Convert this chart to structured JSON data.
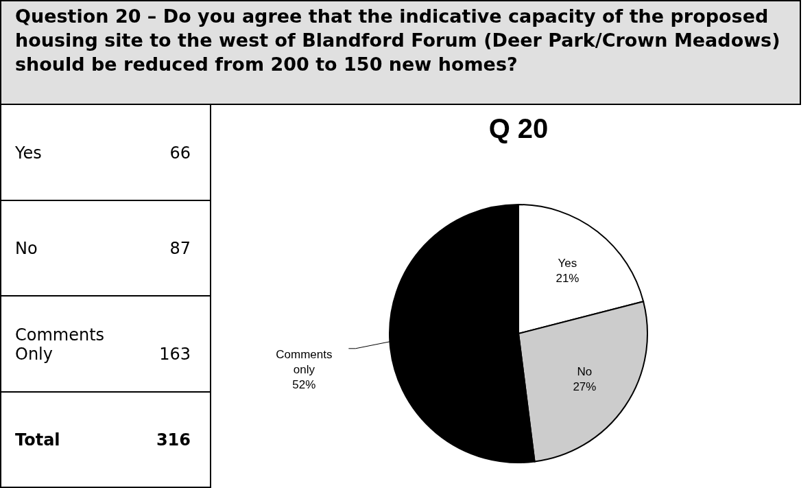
{
  "chart_data": [
    {
      "type": "other",
      "title": "Question 20 – Do you agree that the indicative capacity of the proposed housing site to the west of Blandford Forum (Deer Park/Crown Meadows) should be reduced from 200 to 150 new homes?",
      "annotations": [
        "Yes",
        "66",
        "No",
        "87",
        "Comments Only",
        "163",
        "Total",
        "316"
      ]
    },
    {
      "type": "pie",
      "title": "Q 20",
      "categories": [
        "Yes",
        "No",
        "Comments only"
      ],
      "values": [
        21,
        27,
        52
      ],
      "colors": [
        "#ffffff",
        "#cccccc",
        "#000000"
      ],
      "value_labels": [
        "21%",
        "27%",
        "52%"
      ]
    }
  ]
}
